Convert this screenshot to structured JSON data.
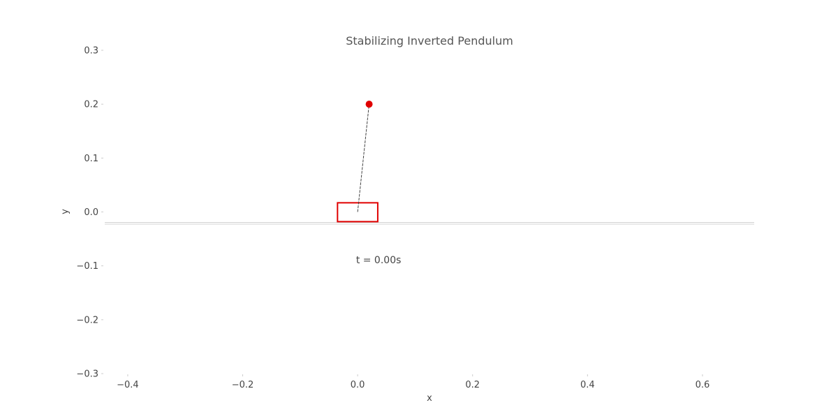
{
  "chart_data": {
    "type": "scatter",
    "title": "Stabilizing Inverted Pendulum",
    "xlabel": "x",
    "ylabel": "y",
    "xlim": [
      -0.44,
      0.69
    ],
    "ylim": [
      -0.3,
      0.3
    ],
    "x_ticks": [
      -0.4,
      -0.2,
      0.0,
      0.2,
      0.4,
      0.6
    ],
    "x_tick_labels": [
      "−0.4",
      "−0.2",
      "0.0",
      "0.2",
      "0.4",
      "0.6"
    ],
    "y_ticks": [
      0.3,
      0.2,
      0.1,
      0.0,
      -0.1,
      -0.2,
      -0.3
    ],
    "y_tick_labels": [
      "0.3",
      "0.2",
      "0.1",
      "0.0",
      "−0.1",
      "−0.2",
      "−0.3"
    ],
    "grid": false,
    "ground_y": -0.02,
    "cart": {
      "x_min": -0.035,
      "x_max": 0.035,
      "y_min": -0.018,
      "y_max": 0.017,
      "color": "#e00000"
    },
    "rod": {
      "x1": 0.0,
      "y1": 0.0,
      "x2": 0.02,
      "y2": 0.2,
      "color": "#444444"
    },
    "bob": {
      "x": 0.02,
      "y": 0.2,
      "color": "#e00000"
    },
    "annotation": {
      "text": "t = 0.00s",
      "x": 0.0,
      "y": -0.095
    }
  }
}
